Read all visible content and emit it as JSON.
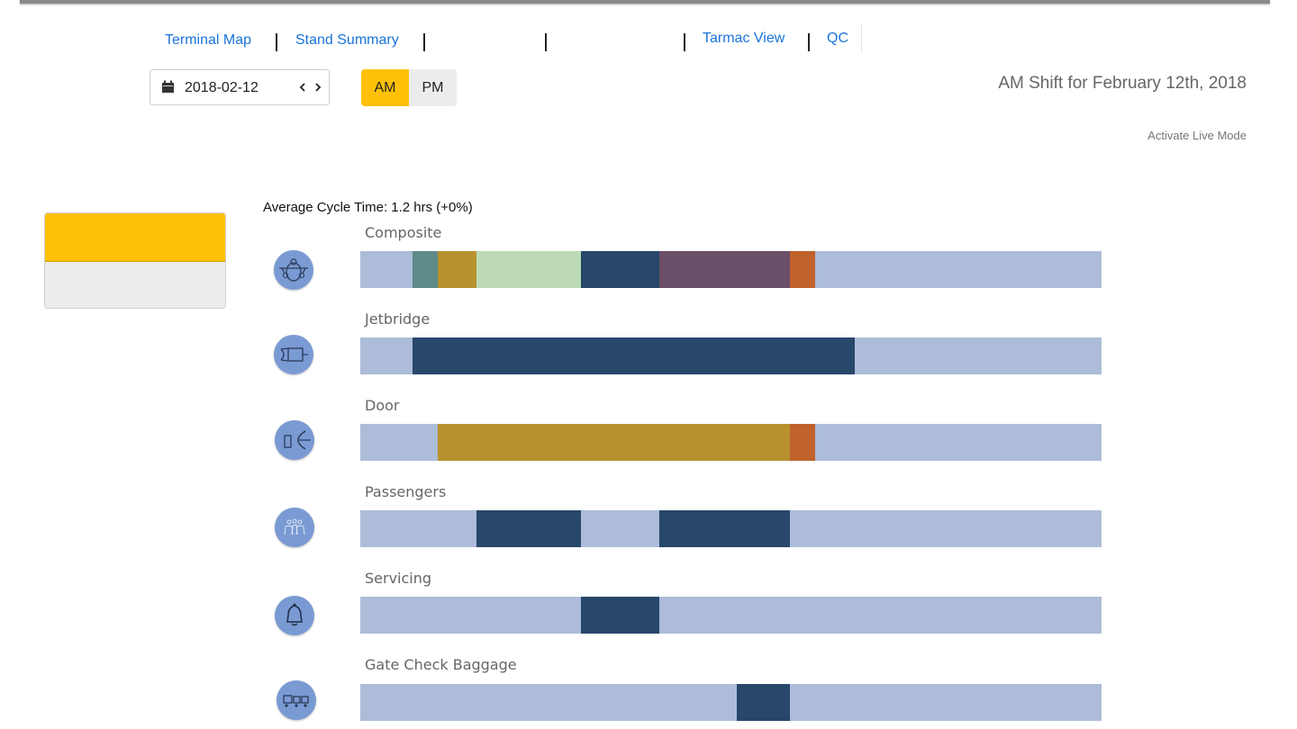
{
  "nav": {
    "terminal_map": "Terminal Map",
    "stand_summary": "Stand Summary",
    "tarmac_view": "Tarmac View",
    "qc": "QC"
  },
  "date": {
    "value": "2018-02-12",
    "icon": "calendar-icon"
  },
  "shift": {
    "am": "AM",
    "pm": "PM",
    "selected": "AM"
  },
  "shift_title": "AM Shift for February 12th, 2018",
  "live_mode": "Activate Live Mode",
  "avg_cycle": "Average Cycle Time: 1.2 hrs (+0%)",
  "colors": {
    "accent": "#ffc107",
    "bar_bg": "#adbcd8",
    "dark_blue": "#27476b",
    "teal": "#5e8a8a",
    "gold": "#b8922f",
    "light_green": "#bcdab6",
    "purple": "#6b4e68",
    "orange": "#c0622b",
    "icon_bg": "#7a9ad3"
  },
  "rows": [
    {
      "label": "Composite",
      "icon": "aircraft-icon",
      "segments": [
        {
          "start": 0.07,
          "end": 0.105,
          "color": "#5e8a8a"
        },
        {
          "start": 0.105,
          "end": 0.157,
          "color": "#b8922f"
        },
        {
          "start": 0.157,
          "end": 0.298,
          "color": "#bcdab6"
        },
        {
          "start": 0.298,
          "end": 0.403,
          "color": "#27476b"
        },
        {
          "start": 0.403,
          "end": 0.579,
          "color": "#6b4e68"
        },
        {
          "start": 0.579,
          "end": 0.614,
          "color": "#c0622b"
        }
      ]
    },
    {
      "label": "Jetbridge",
      "icon": "jetbridge-icon",
      "segments": [
        {
          "start": 0.07,
          "end": 0.667,
          "color": "#27476b"
        }
      ]
    },
    {
      "label": "Door",
      "icon": "door-icon",
      "segments": [
        {
          "start": 0.105,
          "end": 0.579,
          "color": "#b8922f"
        },
        {
          "start": 0.579,
          "end": 0.614,
          "color": "#c0622b"
        }
      ]
    },
    {
      "label": "Passengers",
      "icon": "passengers-icon",
      "segments": [
        {
          "start": 0.157,
          "end": 0.298,
          "color": "#27476b"
        },
        {
          "start": 0.403,
          "end": 0.579,
          "color": "#27476b"
        }
      ]
    },
    {
      "label": "Servicing",
      "icon": "bell-icon",
      "segments": [
        {
          "start": 0.298,
          "end": 0.403,
          "color": "#27476b"
        }
      ]
    },
    {
      "label": "Gate Check Baggage",
      "icon": "baggage-cart-icon",
      "segments": [
        {
          "start": 0.508,
          "end": 0.579,
          "color": "#27476b"
        }
      ]
    }
  ]
}
